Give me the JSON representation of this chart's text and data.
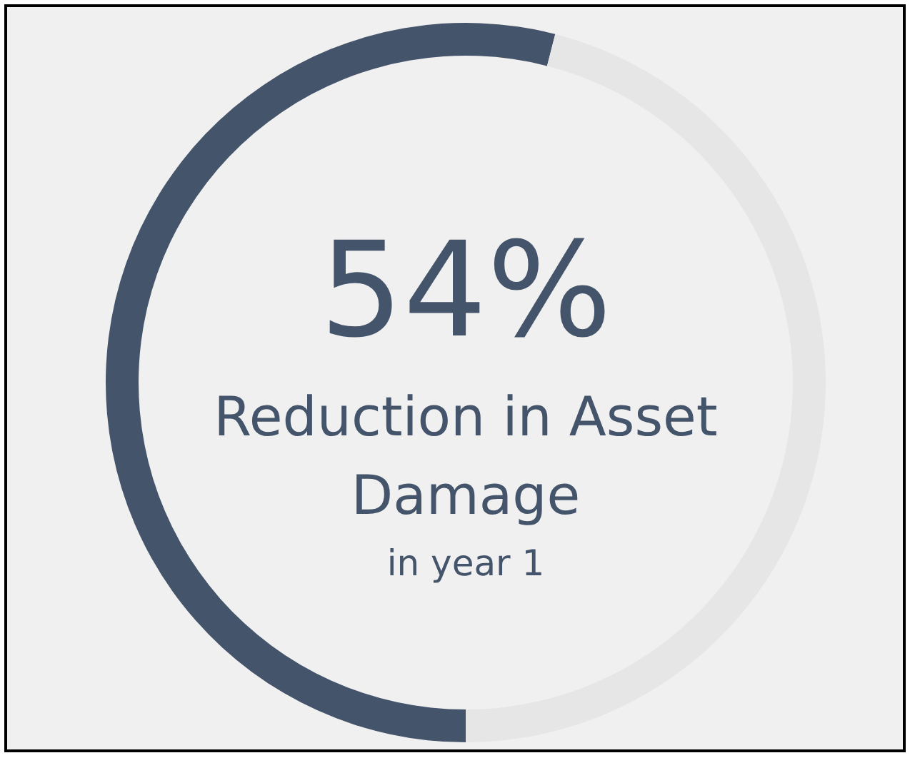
{
  "chart_data": {
    "type": "donut",
    "title": "Reduction in Asset Damage",
    "subtitle": "in year 1",
    "categories": [
      null,
      null
    ],
    "values": [
      54,
      46
    ],
    "colors": [
      "#44546a",
      "#e6e6e6"
    ],
    "value_labels": [
      "54%",
      null
    ]
  }
}
